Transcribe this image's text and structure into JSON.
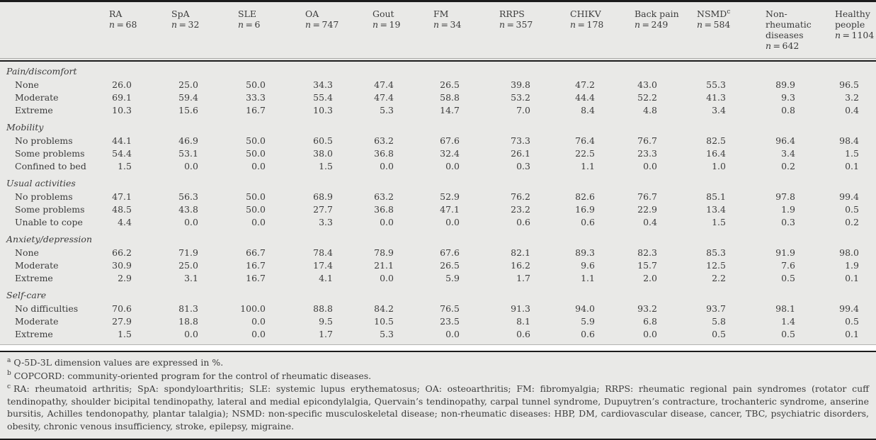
{
  "table": {
    "n_symbol": "n",
    "equals": "=",
    "columns": [
      {
        "label": "RA",
        "n": "68"
      },
      {
        "label": "SpA",
        "n": "32"
      },
      {
        "label": "SLE",
        "n": "6"
      },
      {
        "label": "OA",
        "n": "747"
      },
      {
        "label": "Gout",
        "n": "19"
      },
      {
        "label": "FM",
        "n": "34"
      },
      {
        "label": "RRPS",
        "n": "357"
      },
      {
        "label": "CHIKV",
        "n": "178"
      },
      {
        "label": "Back pain",
        "n": "249"
      },
      {
        "label": "NSMD",
        "sup": "c",
        "n": "584"
      },
      {
        "label": "Non-rheumatic diseases",
        "n": "642"
      },
      {
        "label": "Healthy people",
        "n": "1104"
      }
    ],
    "sections": [
      {
        "label": "Pain/discomfort",
        "rows": [
          {
            "label": "None",
            "values": [
              "26.0",
              "25.0",
              "50.0",
              "34.3",
              "47.4",
              "26.5",
              "39.8",
              "47.2",
              "43.0",
              "55.3",
              "89.9",
              "96.5"
            ]
          },
          {
            "label": "Moderate",
            "values": [
              "69.1",
              "59.4",
              "33.3",
              "55.4",
              "47.4",
              "58.8",
              "53.2",
              "44.4",
              "52.2",
              "41.3",
              "9.3",
              "3.2"
            ]
          },
          {
            "label": "Extreme",
            "values": [
              "10.3",
              "15.6",
              "16.7",
              "10.3",
              "5.3",
              "14.7",
              "7.0",
              "8.4",
              "4.8",
              "3.4",
              "0.8",
              "0.4"
            ]
          }
        ]
      },
      {
        "label": "Mobility",
        "rows": [
          {
            "label": "No problems",
            "values": [
              "44.1",
              "46.9",
              "50.0",
              "60.5",
              "63.2",
              "67.6",
              "73.3",
              "76.4",
              "76.7",
              "82.5",
              "96.4",
              "98.4"
            ]
          },
          {
            "label": "Some problems",
            "values": [
              "54.4",
              "53.1",
              "50.0",
              "38.0",
              "36.8",
              "32.4",
              "26.1",
              "22.5",
              "23.3",
              "16.4",
              "3.4",
              "1.5"
            ]
          },
          {
            "label": "Confined to bed",
            "values": [
              "1.5",
              "0.0",
              "0.0",
              "1.5",
              "0.0",
              "0.0",
              "0.3",
              "1.1",
              "0.0",
              "1.0",
              "0.2",
              "0.1"
            ]
          }
        ]
      },
      {
        "label": "Usual activities",
        "rows": [
          {
            "label": "No problems",
            "values": [
              "47.1",
              "56.3",
              "50.0",
              "68.9",
              "63.2",
              "52.9",
              "76.2",
              "82.6",
              "76.7",
              "85.1",
              "97.8",
              "99.4"
            ]
          },
          {
            "label": "Some problems",
            "values": [
              "48.5",
              "43.8",
              "50.0",
              "27.7",
              "36.8",
              "47.1",
              "23.2",
              "16.9",
              "22.9",
              "13.4",
              "1.9",
              "0.5"
            ]
          },
          {
            "label": "Unable to cope",
            "values": [
              "4.4",
              "0.0",
              "0.0",
              "3.3",
              "0.0",
              "0.0",
              "0.6",
              "0.6",
              "0.4",
              "1.5",
              "0.3",
              "0.2"
            ]
          }
        ]
      },
      {
        "label": "Anxiety/depression",
        "rows": [
          {
            "label": "None",
            "values": [
              "66.2",
              "71.9",
              "66.7",
              "78.4",
              "78.9",
              "67.6",
              "82.1",
              "89.3",
              "82.3",
              "85.3",
              "91.9",
              "98.0"
            ]
          },
          {
            "label": "Moderate",
            "values": [
              "30.9",
              "25.0",
              "16.7",
              "17.4",
              "21.1",
              "26.5",
              "16.2",
              "9.6",
              "15.7",
              "12.5",
              "7.6",
              "1.9"
            ]
          },
          {
            "label": "Extreme",
            "values": [
              "2.9",
              "3.1",
              "16.7",
              "4.1",
              "0.0",
              "5.9",
              "1.7",
              "1.1",
              "2.0",
              "2.2",
              "0.5",
              "0.1"
            ]
          }
        ]
      },
      {
        "label": "Self-care",
        "rows": [
          {
            "label": "No difficulties",
            "values": [
              "70.6",
              "81.3",
              "100.0",
              "88.8",
              "84.2",
              "76.5",
              "91.3",
              "94.0",
              "93.2",
              "93.7",
              "98.1",
              "99.4"
            ]
          },
          {
            "label": "Moderate",
            "values": [
              "27.9",
              "18.8",
              "0.0",
              "9.5",
              "10.5",
              "23.5",
              "8.1",
              "5.9",
              "6.8",
              "5.8",
              "1.4",
              "0.5"
            ]
          },
          {
            "label": "Extreme",
            "values": [
              "1.5",
              "0.0",
              "0.0",
              "1.7",
              "5.3",
              "0.0",
              "0.6",
              "0.6",
              "0.0",
              "0.5",
              "0.5",
              "0.1"
            ]
          }
        ]
      }
    ]
  },
  "footnotes": [
    {
      "marker": "a",
      "text": "Q-5D-3L dimension values are expressed in %."
    },
    {
      "marker": "b",
      "text": "COPCORD: community-oriented program for the control of rheumatic diseases."
    },
    {
      "marker": "c",
      "text": "RA: rheumatoid arthritis; SpA: spondyloarthritis; SLE: systemic lupus erythematosus; OA: osteoarthritis; FM: fibromyalgia; RRPS: rheumatic regional pain syndromes (rotator cuff tendinopathy, shoulder bicipital tendinopathy, lateral and medial epicondylalgia, Quervain’s tendinopathy, carpal tunnel syndrome, Dupuytren’s contracture, trochanteric syndrome, anserine bursitis, Achilles tendonopathy, plantar talalgia); NSMD: non-specific musculoskeletal disease; non-rheumatic diseases: HBP, DM, cardiovascular disease, cancer, TBC, psychiatric disorders, obesity, chronic venous insufficiency, stroke, epilepsy, migraine."
    }
  ],
  "colors": {
    "table_background": "#e9e9e7",
    "text": "#3b3b3b",
    "rule": "#1c1c1c"
  }
}
